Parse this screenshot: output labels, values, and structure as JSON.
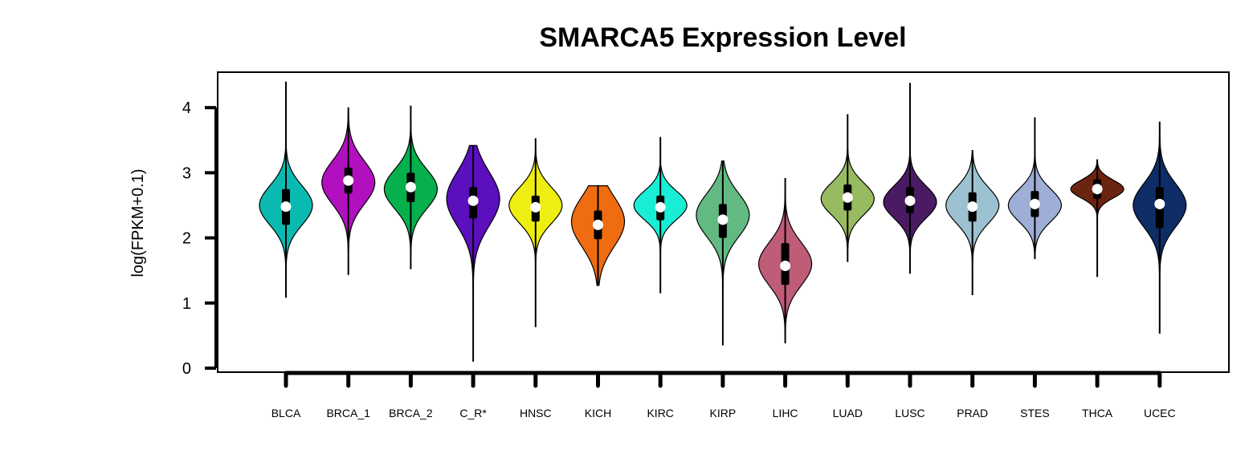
{
  "chart_data": {
    "type": "violin",
    "title": "SMARCA5 Expression Level",
    "xlabel": "",
    "ylabel": "log(FPKM+0.1)",
    "ylim": [
      0,
      4.5
    ],
    "yticks": [
      0,
      1,
      2,
      3,
      4
    ],
    "grid": false,
    "legend": "none",
    "categories": [
      "BLCA",
      "BRCA_1",
      "BRCA_2",
      "C_R*",
      "HNSC",
      "KICH",
      "KIRC",
      "KIRP",
      "LIHC",
      "LUAD",
      "LUSC",
      "PRAD",
      "STES",
      "THCA",
      "UCEC"
    ],
    "series": [
      {
        "category": "BLCA",
        "color": "#0ab9b0",
        "min": 1.08,
        "max": 4.4,
        "q1": 2.2,
        "median": 2.48,
        "q3": 2.75,
        "vmin": 1.55,
        "vmax": 3.4,
        "mode": 2.5,
        "spread": 0.55
      },
      {
        "category": "BRCA_1",
        "color": "#b20fbf",
        "min": 1.43,
        "max": 4.0,
        "q1": 2.68,
        "median": 2.88,
        "q3": 3.08,
        "vmin": 1.7,
        "vmax": 4.0,
        "mode": 2.85,
        "spread": 0.6
      },
      {
        "category": "BRCA_2",
        "color": "#06b04d",
        "min": 1.52,
        "max": 4.03,
        "q1": 2.55,
        "median": 2.78,
        "q3": 3.0,
        "vmin": 1.75,
        "vmax": 3.95,
        "mode": 2.75,
        "spread": 0.55
      },
      {
        "category": "C_R*",
        "color": "#5b0fbd",
        "min": 0.1,
        "max": 3.42,
        "q1": 2.3,
        "median": 2.57,
        "q3": 2.78,
        "vmin": 0.75,
        "vmax": 3.42,
        "mode": 2.6,
        "spread": 0.75
      },
      {
        "category": "HNSC",
        "color": "#eeee12",
        "min": 0.63,
        "max": 3.53,
        "q1": 2.25,
        "median": 2.47,
        "q3": 2.65,
        "vmin": 1.45,
        "vmax": 3.35,
        "mode": 2.5,
        "spread": 0.5
      },
      {
        "category": "KICH",
        "color": "#f06c10",
        "min": 1.27,
        "max": 2.8,
        "q1": 1.98,
        "median": 2.2,
        "q3": 2.42,
        "vmin": 1.27,
        "vmax": 2.8,
        "mode": 2.25,
        "spread": 0.7
      },
      {
        "category": "KIRC",
        "color": "#18eed5",
        "min": 1.15,
        "max": 3.55,
        "q1": 2.27,
        "median": 2.47,
        "q3": 2.65,
        "vmin": 1.55,
        "vmax": 3.1,
        "mode": 2.5,
        "spread": 0.4
      },
      {
        "category": "KIRP",
        "color": "#62ba82",
        "min": 0.35,
        "max": 3.18,
        "q1": 2.0,
        "median": 2.28,
        "q3": 2.52,
        "vmin": 1.1,
        "vmax": 3.18,
        "mode": 2.35,
        "spread": 0.6
      },
      {
        "category": "LIHC",
        "color": "#bf5c78",
        "min": 0.38,
        "max": 2.92,
        "q1": 1.28,
        "median": 1.57,
        "q3": 1.92,
        "vmin": 0.4,
        "vmax": 2.75,
        "mode": 1.6,
        "spread": 0.6
      },
      {
        "category": "LUAD",
        "color": "#98bb61",
        "min": 1.63,
        "max": 3.9,
        "q1": 2.42,
        "median": 2.62,
        "q3": 2.82,
        "vmin": 1.85,
        "vmax": 3.35,
        "mode": 2.6,
        "spread": 0.45
      },
      {
        "category": "LUSC",
        "color": "#4a1a62",
        "min": 1.45,
        "max": 4.38,
        "q1": 2.38,
        "median": 2.57,
        "q3": 2.78,
        "vmin": 1.8,
        "vmax": 3.7,
        "mode": 2.55,
        "spread": 0.45
      },
      {
        "category": "PRAD",
        "color": "#9cc2d2",
        "min": 1.12,
        "max": 3.35,
        "q1": 2.25,
        "median": 2.48,
        "q3": 2.7,
        "vmin": 1.4,
        "vmax": 3.3,
        "mode": 2.5,
        "spread": 0.5
      },
      {
        "category": "STES",
        "color": "#9eaed6",
        "min": 1.68,
        "max": 3.85,
        "q1": 2.32,
        "median": 2.52,
        "q3": 2.72,
        "vmin": 1.68,
        "vmax": 3.35,
        "mode": 2.5,
        "spread": 0.45
      },
      {
        "category": "THCA",
        "color": "#6b2410",
        "min": 1.4,
        "max": 3.2,
        "q1": 2.6,
        "median": 2.75,
        "q3": 2.9,
        "vmin": 2.0,
        "vmax": 3.2,
        "mode": 2.75,
        "spread": 0.25
      },
      {
        "category": "UCEC",
        "color": "#0e2d66",
        "min": 0.53,
        "max": 3.78,
        "q1": 2.15,
        "median": 2.52,
        "q3": 2.78,
        "vmin": 0.55,
        "vmax": 3.78,
        "mode": 2.5,
        "spread": 0.6
      }
    ]
  }
}
